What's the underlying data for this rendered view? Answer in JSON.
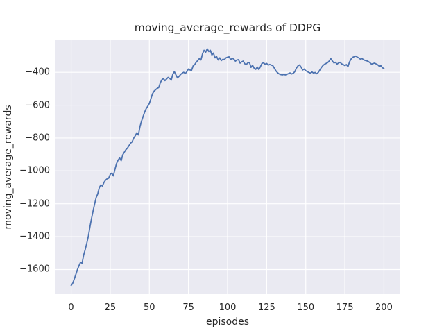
{
  "chart_data": {
    "type": "line",
    "title": "moving_average_rewards of DDPG",
    "xlabel": "episodes",
    "ylabel": "moving_average_rewards",
    "x_ticks": [
      0,
      25,
      50,
      75,
      100,
      125,
      150,
      175,
      200
    ],
    "x_tick_labels": [
      "0",
      "25",
      "50",
      "75",
      "100",
      "125",
      "150",
      "175",
      "200"
    ],
    "y_ticks": [
      -400,
      -600,
      -800,
      -1000,
      -1200,
      -1400,
      -1600
    ],
    "y_tick_labels": [
      "−400",
      "−600",
      "−800",
      "−1000",
      "−1200",
      "−1400",
      "−1600"
    ],
    "xlim": [
      -10,
      210
    ],
    "ylim": [
      -1750,
      -205
    ],
    "grid": true,
    "legend": false,
    "colors": {
      "line": "#4c72b0",
      "axes_background": "#eaeaf2",
      "grid": "#ffffff",
      "figure_background": "#ffffff",
      "text": "#262626"
    },
    "series": [
      {
        "name": "moving_average_rewards",
        "x_start": 0,
        "x_step": 1,
        "values": [
          -1697,
          -1684,
          -1658,
          -1630,
          -1601,
          -1577,
          -1556,
          -1562,
          -1512,
          -1478,
          -1440,
          -1398,
          -1342,
          -1291,
          -1245,
          -1202,
          -1162,
          -1140,
          -1102,
          -1085,
          -1092,
          -1070,
          -1056,
          -1048,
          -1044,
          -1021,
          -1013,
          -1030,
          -991,
          -956,
          -935,
          -921,
          -938,
          -902,
          -886,
          -871,
          -861,
          -846,
          -831,
          -823,
          -801,
          -786,
          -768,
          -781,
          -731,
          -697,
          -669,
          -642,
          -621,
          -606,
          -590,
          -561,
          -531,
          -515,
          -506,
          -498,
          -493,
          -464,
          -446,
          -438,
          -451,
          -441,
          -431,
          -437,
          -448,
          -411,
          -396,
          -416,
          -434,
          -425,
          -413,
          -405,
          -400,
          -408,
          -396,
          -380,
          -386,
          -388,
          -361,
          -353,
          -338,
          -328,
          -316,
          -325,
          -287,
          -266,
          -278,
          -257,
          -274,
          -266,
          -295,
          -283,
          -312,
          -304,
          -325,
          -312,
          -329,
          -321,
          -322,
          -312,
          -308,
          -306,
          -323,
          -315,
          -320,
          -332,
          -325,
          -323,
          -344,
          -336,
          -332,
          -348,
          -353,
          -342,
          -340,
          -370,
          -357,
          -375,
          -382,
          -368,
          -383,
          -366,
          -346,
          -342,
          -351,
          -346,
          -356,
          -352,
          -356,
          -360,
          -376,
          -392,
          -403,
          -410,
          -414,
          -416,
          -413,
          -416,
          -412,
          -408,
          -404,
          -410,
          -406,
          -396,
          -375,
          -361,
          -355,
          -368,
          -386,
          -380,
          -390,
          -396,
          -401,
          -405,
          -398,
          -405,
          -401,
          -409,
          -401,
          -386,
          -371,
          -359,
          -351,
          -346,
          -341,
          -331,
          -316,
          -331,
          -343,
          -339,
          -350,
          -343,
          -339,
          -349,
          -353,
          -359,
          -353,
          -366,
          -336,
          -319,
          -309,
          -305,
          -301,
          -308,
          -313,
          -321,
          -316,
          -324,
          -328,
          -330,
          -334,
          -341,
          -350,
          -347,
          -344,
          -349,
          -354,
          -363,
          -359,
          -372,
          -377
        ]
      }
    ]
  }
}
